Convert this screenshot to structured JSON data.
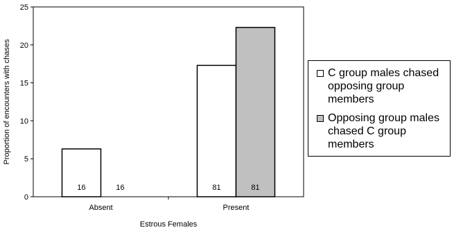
{
  "chart_data": {
    "type": "bar",
    "title": "",
    "xlabel": "Estrous Females",
    "ylabel": "Proportion of encounters with chases",
    "categories": [
      "Absent",
      "Present"
    ],
    "ylim": [
      0,
      25
    ],
    "yticks": [
      0,
      5,
      10,
      15,
      20,
      25
    ],
    "series": [
      {
        "name": "C group males chased opposing group members",
        "color": "#ffffff",
        "values": [
          6.3,
          17.3
        ],
        "sample_labels": [
          "16",
          "81"
        ]
      },
      {
        "name": "Opposing group males chased C group members",
        "color": "#c0c0c0",
        "values": [
          0,
          22.3
        ],
        "sample_labels": [
          "16",
          "81"
        ]
      }
    ],
    "grid": false,
    "legend_position": "right"
  }
}
